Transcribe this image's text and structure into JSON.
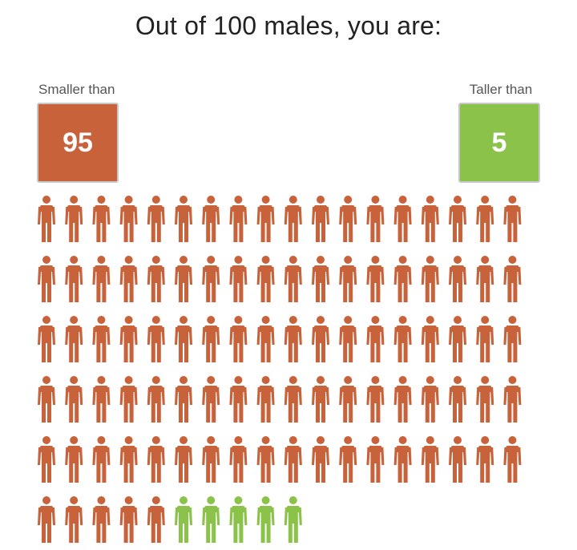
{
  "title": "Out of 100 males, you are:",
  "left_stat": {
    "label": "Smaller than",
    "value": "95"
  },
  "right_stat": {
    "label": "Taller than",
    "value": "5"
  },
  "colors": {
    "smaller": "#C8623A",
    "taller": "#8BC34A"
  },
  "chart_data": {
    "type": "pictogram",
    "total": 100,
    "icon": "person-icon",
    "segments": [
      {
        "name": "Smaller than",
        "count": 95,
        "color": "#C8623A"
      },
      {
        "name": "Taller than",
        "count": 5,
        "color": "#8BC34A"
      }
    ],
    "columns_per_row": 18
  }
}
